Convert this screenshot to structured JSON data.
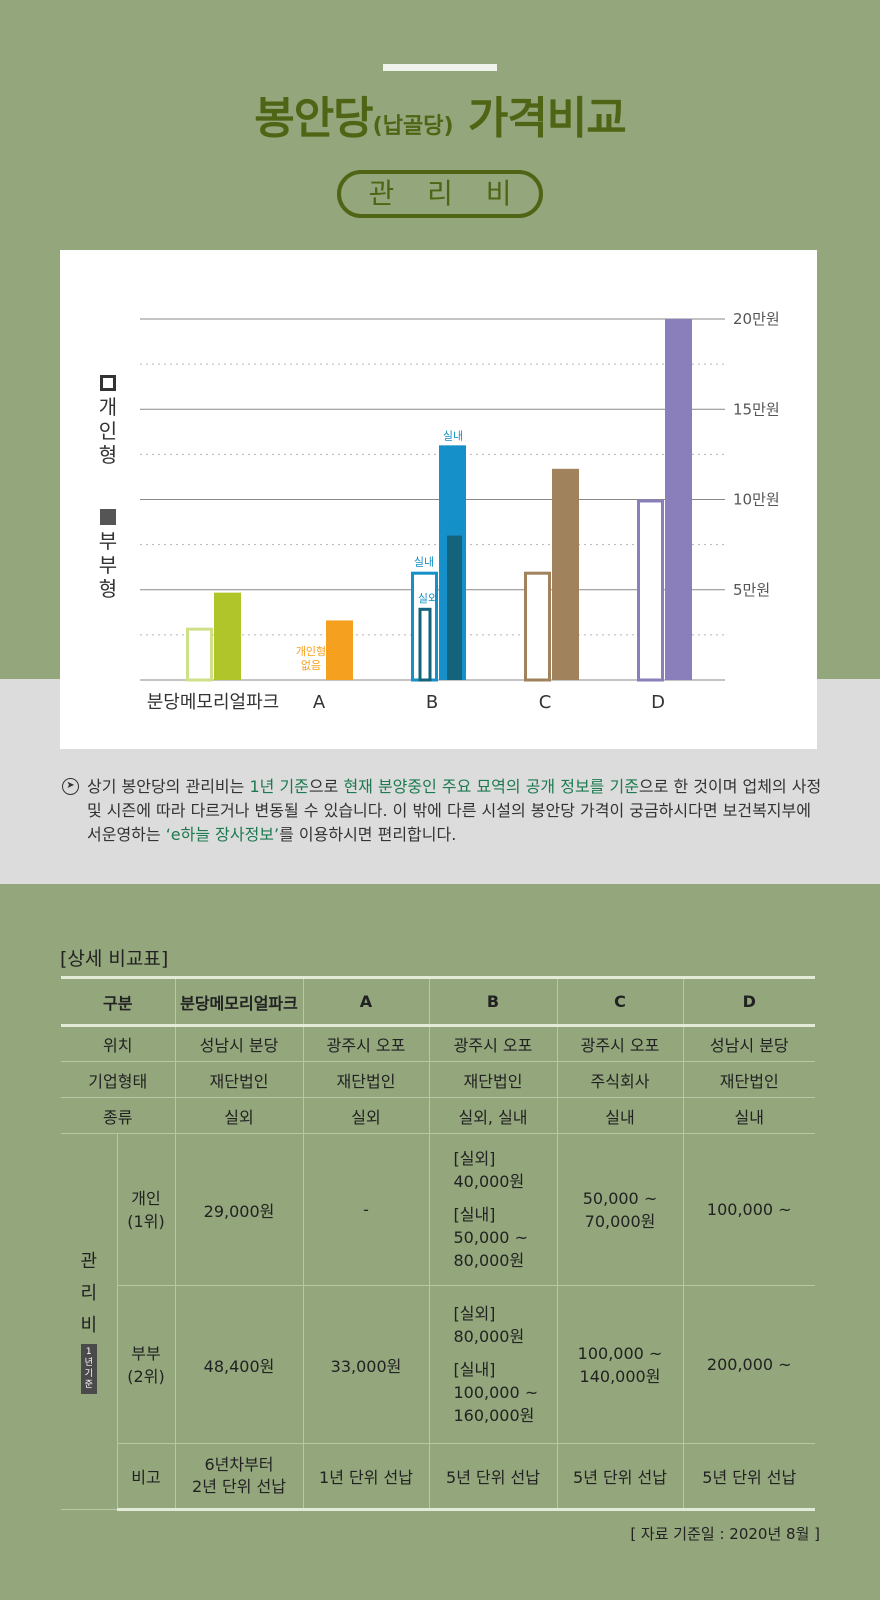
{
  "header": {
    "title_main": "봉안당",
    "title_sub": "(납골당)",
    "title_end": "가격비교",
    "section_label": "관 리 비"
  },
  "colors": {
    "title_green": "#4f6414",
    "bg_green": "#93a67c",
    "band_grey": "#dcdcdc",
    "memorial": "#afc52a",
    "memorial_outline": "#cfe08a",
    "a": "#f5a11f",
    "b_indoor": "#1590c8",
    "b_outdoor": "#13637d",
    "c": "#a0825d",
    "d": "#8a7fba"
  },
  "chart_data": {
    "type": "bar",
    "legend": {
      "open": "개인형",
      "filled": "부부형"
    },
    "categories": [
      "분당메모리얼파크",
      "A",
      "B",
      "C",
      "D"
    ],
    "ytick_labels": [
      "20만원",
      "15만원",
      "10만원",
      "5만원"
    ],
    "ylim": [
      0,
      200000
    ],
    "series": [
      {
        "name": "개인형",
        "values": [
          29000,
          null,
          50000,
          60000,
          100000
        ]
      },
      {
        "name": "부부형",
        "values": [
          48400,
          33000,
          130000,
          117000,
          200000
        ]
      }
    ],
    "b_detail": {
      "individual_outdoor": 40000,
      "individual_indoor": 60000,
      "couple_outdoor": 80000,
      "couple_indoor": 130000
    },
    "annotations": {
      "a_no_individual": [
        "개인형",
        "없음"
      ],
      "indoor": "실내",
      "outdoor": "실외"
    },
    "grid": true
  },
  "note": {
    "p1": "상기 봉안당의 관리비는 ",
    "h1": "1년 기준",
    "p2": "으로 ",
    "h2": "현재 분양중인 주요 묘역의 공개 정보를 기준",
    "p3": "으로 한 것이며 업체의 사정 및 시즌에 따라 다르거나 변동될 수 있습니다. 이 밖에 다른 시설의 봉안당 가격이 궁금하시다면 보건복지부에서운영하는 ",
    "h3": "‘e하늘 장사정보’",
    "p4": "를 이용하시면 편리합니다."
  },
  "table": {
    "title": "[상세 비교표]",
    "headers": [
      "구분",
      "분당메모리얼파크",
      "A",
      "B",
      "C",
      "D"
    ],
    "location": {
      "label": "위치",
      "values": [
        "성남시 분당",
        "광주시 오포",
        "광주시 오포",
        "광주시 오포",
        "성남시 분당"
      ]
    },
    "company": {
      "label": "기업형태",
      "values": [
        "재단법인",
        "재단법인",
        "재단법인",
        "주식회사",
        "재단법인"
      ]
    },
    "kind": {
      "label": "종류",
      "values": [
        "실외",
        "실외",
        "실외, 실내",
        "실내",
        "실내"
      ]
    },
    "fee_label": [
      "관",
      "리",
      "비"
    ],
    "fee_badge": [
      "1",
      "년",
      "기",
      "준"
    ],
    "individual": {
      "label": [
        "개인",
        "(1위)"
      ],
      "memorial": "29,000원",
      "a": "-",
      "b": [
        "[실외]",
        "40,000원",
        "[실내]",
        "50,000 ~",
        "80,000원"
      ],
      "c": [
        "50,000 ~",
        "70,000원"
      ],
      "d": "100,000 ~"
    },
    "couple": {
      "label": [
        "부부",
        "(2위)"
      ],
      "memorial": "48,400원",
      "a": "33,000원",
      "b": [
        "[실외]",
        "80,000원",
        "[실내]",
        "100,000 ~",
        "160,000원"
      ],
      "c": [
        "100,000 ~",
        "140,000원"
      ],
      "d": "200,000 ~"
    },
    "remark": {
      "label": "비고",
      "memorial": [
        "6년차부터",
        "2년 단위 선납"
      ],
      "a": "1년 단위 선납",
      "b": "5년 단위 선납",
      "c": "5년 단위 선납",
      "d": "5년 단위 선납"
    }
  },
  "source": "[ 자료 기준일 : 2020년 8월 ]"
}
